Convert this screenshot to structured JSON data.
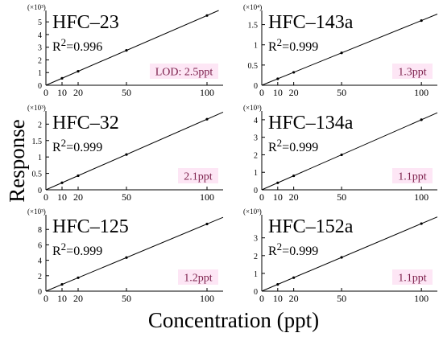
{
  "figure": {
    "ylabel": "Response",
    "xlabel": "Concentration (ppt)"
  },
  "chart_data": [
    {
      "type": "scatter",
      "title": "HFC–23",
      "r2": "R2=0.996",
      "r2_base": "R",
      "r2_sup": "2",
      "r2_val": "=0.996",
      "lod": "LOD: 2.5ppt",
      "multiplier": "(×10³)",
      "x": [
        10,
        20,
        50,
        100
      ],
      "y": [
        0.55,
        1.1,
        2.75,
        5.5
      ],
      "xlim": [
        0,
        110
      ],
      "ylim": [
        0,
        5.9
      ],
      "xticks": [
        0,
        10,
        20,
        50,
        100
      ],
      "yticks": [
        0,
        1,
        2,
        3,
        4,
        5
      ],
      "ytick_labels": [
        "0",
        "1",
        "2",
        "3",
        "4",
        "5"
      ],
      "fit": {
        "slope": 0.055,
        "intercept": 0
      },
      "grid": false
    },
    {
      "type": "scatter",
      "title": "HFC–143a",
      "r2": "R2=0.999",
      "r2_base": "R",
      "r2_sup": "2",
      "r2_val": "=0.999",
      "lod": "1.3ppt",
      "multiplier": "(×10⁴)",
      "x": [
        10,
        20,
        50,
        100
      ],
      "y": [
        0.16,
        0.32,
        0.8,
        1.6
      ],
      "xlim": [
        0,
        110
      ],
      "ylim": [
        0,
        1.85
      ],
      "xticks": [
        0,
        10,
        20,
        50,
        100
      ],
      "yticks": [
        0,
        0.5,
        1,
        1.5
      ],
      "ytick_labels": [
        "0",
        "0.5",
        "1",
        "1.5"
      ],
      "fit": {
        "slope": 0.016,
        "intercept": 0
      },
      "grid": false
    },
    {
      "type": "scatter",
      "title": "HFC–32",
      "r2": "R2=0.999",
      "r2_base": "R",
      "r2_sup": "2",
      "r2_val": "=0.999",
      "lod": "2.1ppt",
      "multiplier": "(×10³)",
      "x": [
        10,
        20,
        50,
        100
      ],
      "y": [
        0.215,
        0.43,
        1.075,
        2.15
      ],
      "xlim": [
        0,
        110
      ],
      "ylim": [
        0,
        2.4
      ],
      "xticks": [
        0,
        10,
        20,
        50,
        100
      ],
      "yticks": [
        0,
        0.5,
        1,
        1.5,
        2
      ],
      "ytick_labels": [
        "0",
        "0.5",
        "1",
        "1.5",
        "2"
      ],
      "fit": {
        "slope": 0.0215,
        "intercept": 0
      },
      "grid": false
    },
    {
      "type": "scatter",
      "title": "HFC–134a",
      "r2": "R2=0.999",
      "r2_base": "R",
      "r2_sup": "2",
      "r2_val": "=0.999",
      "lod": "1.1ppt",
      "multiplier": "(×10³)",
      "x": [
        10,
        20,
        50,
        100
      ],
      "y": [
        0.4,
        0.8,
        2.0,
        4.0
      ],
      "xlim": [
        0,
        110
      ],
      "ylim": [
        0,
        4.5
      ],
      "xticks": [
        0,
        10,
        20,
        50,
        100
      ],
      "yticks": [
        0,
        1,
        2,
        3,
        4
      ],
      "ytick_labels": [
        "0",
        "1",
        "2",
        "3",
        "4"
      ],
      "fit": {
        "slope": 0.04,
        "intercept": 0
      },
      "grid": false
    },
    {
      "type": "scatter",
      "title": "HFC–125",
      "r2": "R2=0.999",
      "r2_base": "R",
      "r2_sup": "2",
      "r2_val": "=0.999",
      "lod": "1.2ppt",
      "multiplier": "(×10³)",
      "x": [
        10,
        20,
        50,
        100
      ],
      "y": [
        0.87,
        1.74,
        4.35,
        8.7
      ],
      "xlim": [
        0,
        110
      ],
      "ylim": [
        0,
        9.9
      ],
      "xticks": [
        0,
        10,
        20,
        50,
        100
      ],
      "yticks": [
        0,
        2,
        4,
        6,
        8
      ],
      "ytick_labels": [
        "0",
        "2",
        "4",
        "6",
        "8"
      ],
      "fit": {
        "slope": 0.087,
        "intercept": 0
      },
      "grid": false
    },
    {
      "type": "scatter",
      "title": "HFC–152a",
      "r2": "R2=0.999",
      "r2_base": "R",
      "r2_sup": "2",
      "r2_val": "=0.999",
      "lod": "1.1ppt",
      "multiplier": "(×10³)",
      "x": [
        10,
        20,
        50,
        100
      ],
      "y": [
        0.38,
        0.76,
        1.9,
        3.8
      ],
      "xlim": [
        0,
        110
      ],
      "ylim": [
        0,
        4.3
      ],
      "xticks": [
        0,
        10,
        20,
        50,
        100
      ],
      "yticks": [
        0,
        1,
        2,
        3
      ],
      "ytick_labels": [
        "0",
        "1",
        "2",
        "3"
      ],
      "fit": {
        "slope": 0.038,
        "intercept": 0
      },
      "grid": false
    }
  ],
  "colors": {
    "lod_box": "#fde6f5",
    "lod_text": "#7b1e4a",
    "axis": "#000000",
    "line": "#000000",
    "point": "#000000"
  }
}
